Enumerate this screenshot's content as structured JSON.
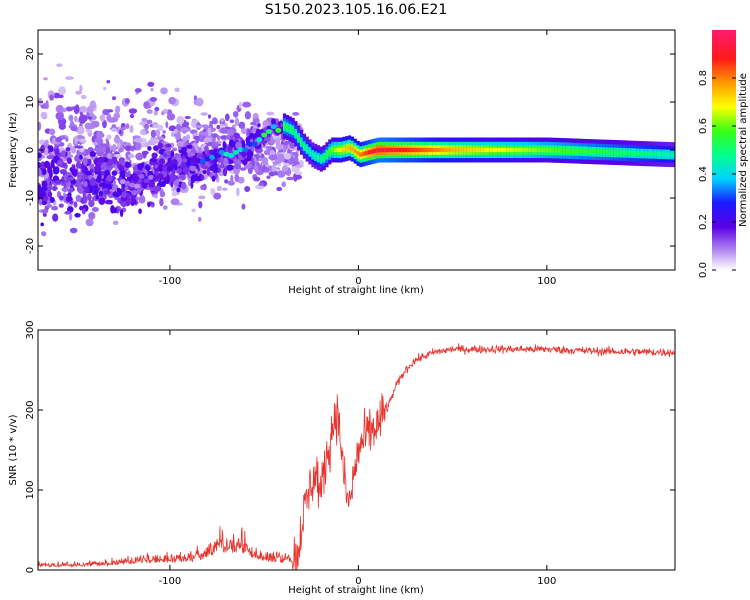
{
  "title": "S150.2023.105.16.06.E21",
  "chart_data": [
    {
      "type": "heatmap",
      "xlabel": "Height of straight line (km)",
      "ylabel": "Frequency (Hz)",
      "xlim": [
        -170,
        168
      ],
      "ylim": [
        -25,
        25
      ],
      "xticks": [
        -100,
        0,
        100
      ],
      "xtick_labels": [
        "-100",
        "0",
        "100"
      ],
      "yticks": [
        -20,
        -10,
        0,
        10,
        20
      ],
      "ytick_labels": [
        "-20",
        "-10",
        "0",
        "10",
        "20"
      ],
      "ridge": {
        "description": "frequency of strongest return vs height",
        "x": [
          -120,
          -100,
          -80,
          -70,
          -60,
          -50,
          -45,
          -40,
          -35,
          -30,
          -25,
          -20,
          -15,
          -10,
          -5,
          0,
          10,
          50,
          100,
          168
        ],
        "y": [
          -7,
          -4,
          -2,
          -1,
          0,
          3,
          5,
          5,
          4,
          1,
          -1,
          -2,
          0,
          0,
          0.5,
          -1,
          0,
          0,
          0,
          -1
        ],
        "amplitude": [
          0.1,
          0.2,
          0.3,
          0.45,
          0.45,
          0.55,
          0.6,
          0.55,
          0.5,
          0.5,
          0.45,
          0.5,
          0.6,
          0.7,
          0.75,
          0.8,
          0.95,
          0.75,
          0.6,
          0.45
        ]
      },
      "colorbar": {
        "label": "Normalized spectral amplitude",
        "range": [
          0,
          1
        ],
        "ticks": [
          0.0,
          0.2,
          0.4,
          0.6,
          0.8
        ],
        "tick_labels": [
          "0.0",
          "0.2",
          "0.4",
          "0.6",
          "0.8"
        ]
      },
      "grid": false,
      "legend": false
    },
    {
      "type": "line",
      "xlabel": "Height of straight line (km)",
      "ylabel": "SNR (10 * v/v)",
      "xlim": [
        -170,
        168
      ],
      "ylim": [
        0,
        300
      ],
      "xticks": [
        -100,
        0,
        100
      ],
      "xtick_labels": [
        "-100",
        "0",
        "100"
      ],
      "yticks": [
        0,
        100,
        200,
        300
      ],
      "ytick_labels": [
        "0",
        "100",
        "200",
        "300"
      ],
      "color": "#e8332d",
      "series": [
        {
          "x": [
            -170,
            -160,
            -150,
            -140,
            -130,
            -120,
            -110,
            -100,
            -90,
            -80,
            -75,
            -70,
            -65,
            -60,
            -55,
            -50,
            -45,
            -40,
            -35,
            -32,
            -30,
            -28,
            -25,
            -22,
            -20,
            -18,
            -15,
            -12,
            -10,
            -8,
            -5,
            0,
            5,
            10,
            15,
            20,
            25,
            30,
            40,
            50,
            60,
            80,
            100,
            120,
            140,
            168
          ],
          "y": [
            8,
            8,
            9,
            10,
            12,
            16,
            18,
            18,
            20,
            28,
            45,
            40,
            45,
            38,
            28,
            22,
            20,
            18,
            18,
            20,
            60,
            80,
            110,
            120,
            90,
            130,
            160,
            200,
            180,
            120,
            80,
            150,
            170,
            180,
            200,
            230,
            250,
            262,
            272,
            276,
            276,
            276,
            276,
            274,
            273,
            272
          ]
        }
      ],
      "grid": false,
      "legend": false
    }
  ]
}
